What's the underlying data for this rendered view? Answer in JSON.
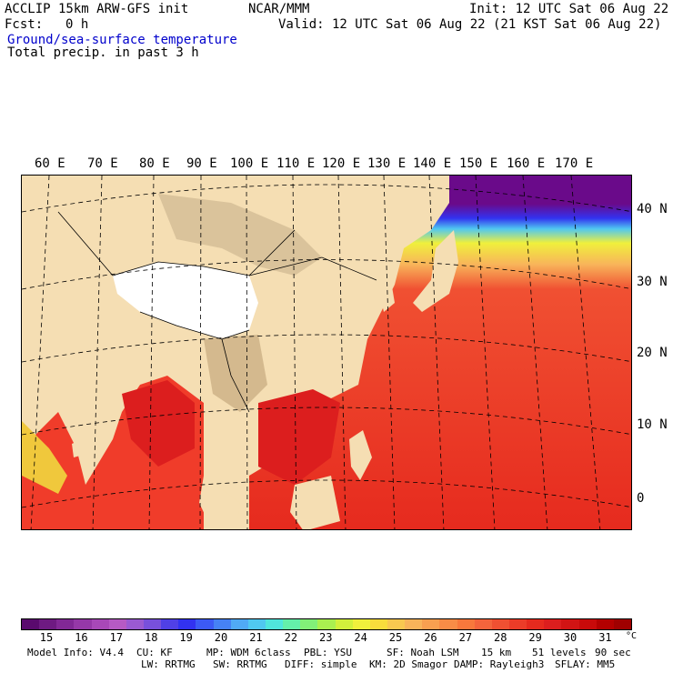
{
  "header": {
    "model_line": "ACCLIP 15km ARW-GFS init",
    "org": "NCAR/MMM",
    "init": "Init: 12 UTC Sat 06 Aug 22",
    "fcst_label": "Fcst:",
    "fcst_value": "0 h",
    "valid": "Valid: 12 UTC Sat 06 Aug 22 (21 KST Sat 06 Aug 22)",
    "field1": "Ground/sea-surface temperature",
    "field2": "Total precip. in past 3 h"
  },
  "map": {
    "lon_labels": [
      "60 E",
      "70 E",
      "80 E",
      "90 E",
      "100 E",
      "110 E",
      "120 E",
      "130 E",
      "140 E",
      "150 E",
      "160 E",
      "170 E"
    ],
    "lat_labels": [
      "40 N",
      "30 N",
      "20 N",
      "10 N",
      "0"
    ],
    "colors": {
      "land": "#f5deb3",
      "plateau": "#ffffff",
      "terrain": "#c8b08a",
      "warm_sea": "#f03c2a",
      "hot_sea": "#dc1e1e",
      "cold_sea": "#6a0a8a"
    }
  },
  "colorbar": {
    "unit": "°C",
    "tick_labels": [
      "15",
      "16",
      "17",
      "18",
      "19",
      "20",
      "21",
      "22",
      "23",
      "24",
      "25",
      "26",
      "27",
      "28",
      "29",
      "30",
      "31"
    ],
    "colors": [
      "#5a0a6e",
      "#6e1a82",
      "#822896",
      "#9638a8",
      "#a848b8",
      "#b65ac4",
      "#9a5ad2",
      "#7850dc",
      "#5040e6",
      "#3232f0",
      "#3c5af5",
      "#4682f5",
      "#50aaf5",
      "#50c8f0",
      "#50e6dc",
      "#64f0aa",
      "#82f078",
      "#aaf050",
      "#d2f03c",
      "#f0f03c",
      "#f8dc3c",
      "#f8c850",
      "#f8b45a",
      "#f8a050",
      "#f88c46",
      "#f8783c",
      "#f4643c",
      "#f05032",
      "#ec3c28",
      "#e62a1e",
      "#dc1e1e",
      "#d21414",
      "#c80a0a",
      "#b40000",
      "#a00000"
    ]
  },
  "info": {
    "line1": [
      "Model Info: V4.4",
      "CU: KF",
      "MP: WDM 6class",
      "PBL: YSU",
      "SF: Noah LSM",
      "15 km",
      "51 levels",
      "90 sec"
    ],
    "line2": [
      "LW: RRTMG",
      "SW: RRTMG",
      "DIFF: simple",
      "KM: 2D Smagor",
      "DAMP: Rayleigh3",
      "SFLAY: MM5"
    ]
  }
}
